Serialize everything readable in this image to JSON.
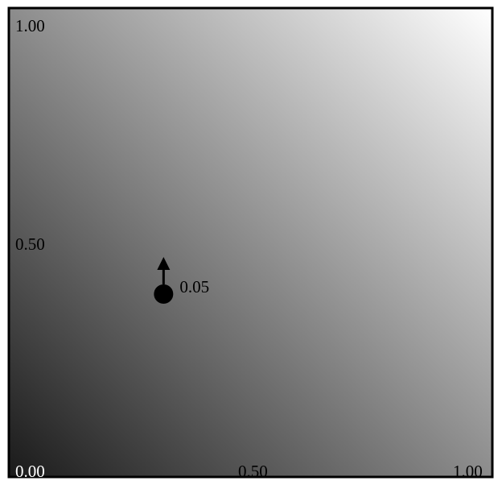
{
  "chart_data": {
    "type": "scatter",
    "axes": {
      "x_ticks": [
        "0.00",
        "0.50",
        "1.00"
      ],
      "y_ticks": [
        "0.00",
        "0.50",
        "1.00"
      ],
      "xlim": [
        0,
        1
      ],
      "ylim": [
        0,
        1
      ]
    },
    "background": {
      "kind": "gradient",
      "low_color": "#1a1a1a",
      "high_color": "#ffffff"
    },
    "point": {
      "x": 0.32,
      "y": 0.39,
      "color": "#000000"
    },
    "arrow": {
      "direction": "up",
      "label": "0.05"
    }
  },
  "frame": {
    "border_color": "#000000"
  }
}
